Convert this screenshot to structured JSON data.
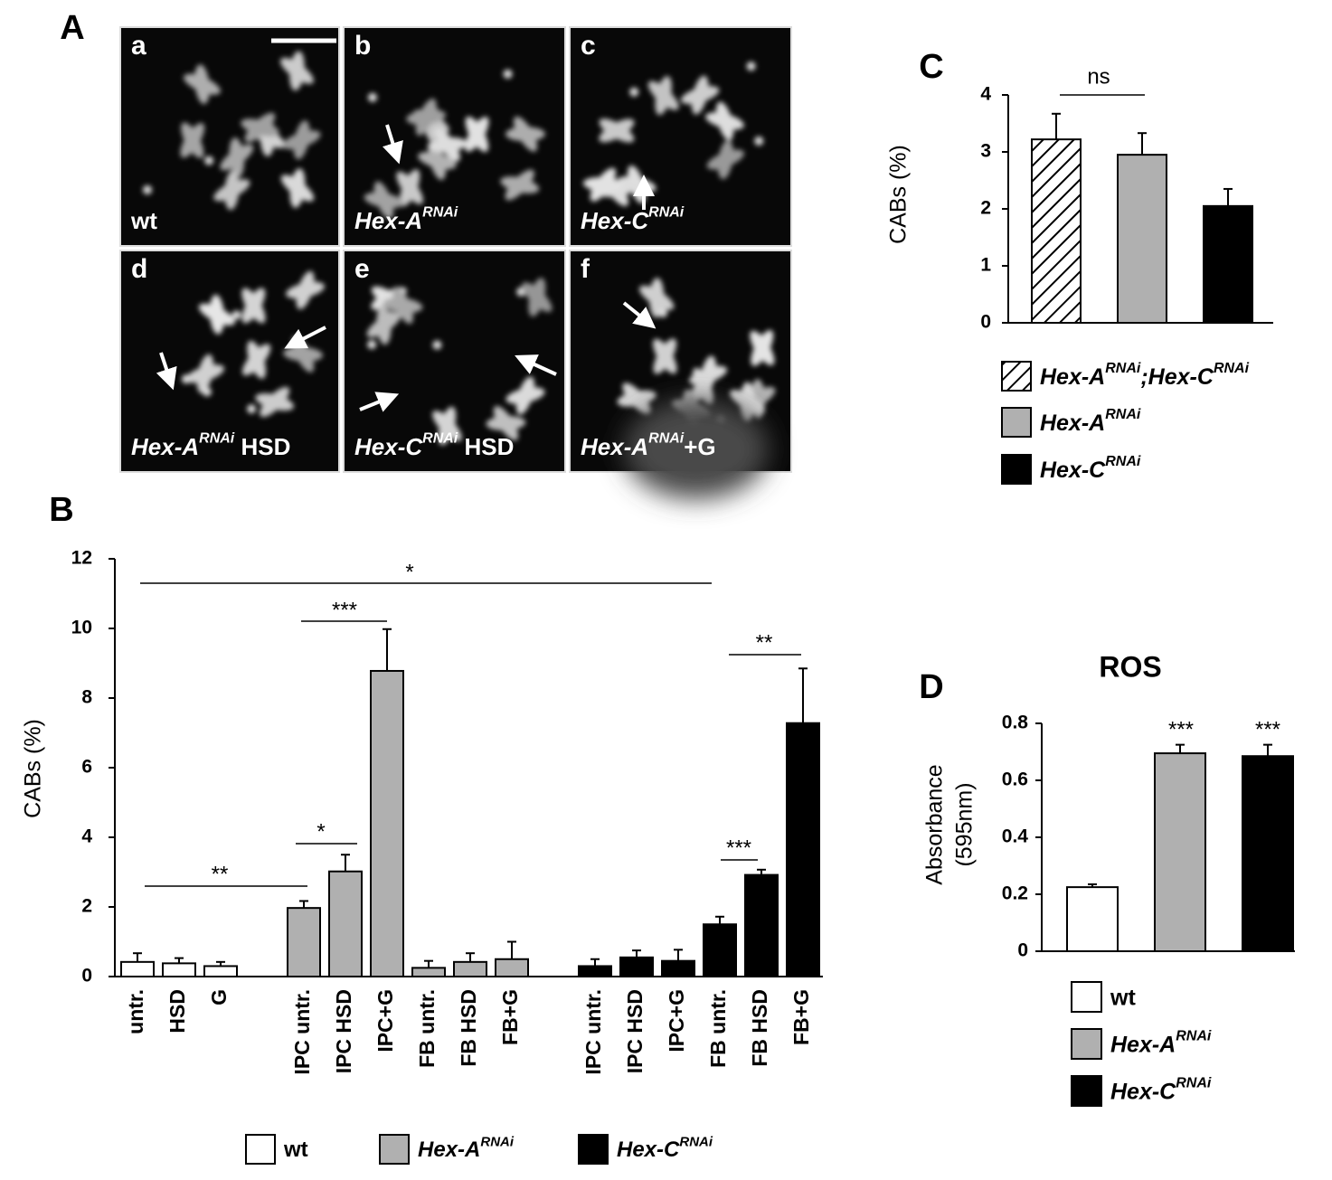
{
  "panel_letters": [
    "A",
    "B",
    "C",
    "D"
  ],
  "micrographs": [
    {
      "letter": "a",
      "label": [
        {
          "text": "wt"
        }
      ]
    },
    {
      "letter": "b",
      "label": [
        {
          "text": "Hex-A",
          "style": "italic"
        },
        {
          "text": "RNAi",
          "style": "sup"
        }
      ]
    },
    {
      "letter": "c",
      "label": [
        {
          "text": "Hex-C",
          "style": "italic"
        },
        {
          "text": "RNAi",
          "style": "sup"
        }
      ]
    },
    {
      "letter": "d",
      "label": [
        {
          "text": "Hex-A",
          "style": "italic"
        },
        {
          "text": "RNAi",
          "style": "sup"
        },
        {
          "text": " HSD"
        }
      ]
    },
    {
      "letter": "e",
      "label": [
        {
          "text": "Hex-C",
          "style": "italic"
        },
        {
          "text": "RNAi",
          "style": "sup"
        },
        {
          "text": " HSD"
        }
      ]
    },
    {
      "letter": "f",
      "label": [
        {
          "text": "Hex-A",
          "style": "italic"
        },
        {
          "text": "RNAi",
          "style": "sup"
        },
        {
          "text": "+G"
        }
      ]
    }
  ],
  "chart_data": [
    {
      "type": "bar",
      "y_label": "CABs (%)",
      "categories": [
        "untr.",
        "HSD",
        "G",
        "IPC untr.",
        "IPC HSD",
        "IPC+G",
        "FB untr.",
        "FB HSD",
        "FB+G",
        "IPC untr.",
        "IPC HSD",
        "IPC+G",
        "FB untr.",
        "FB HSD",
        "FB+G"
      ],
      "series": [
        {
          "name": [
            {
              "text": "wt"
            }
          ],
          "color": "#ffffff",
          "values": [
            0.42,
            0.38,
            0.3,
            null,
            null,
            null,
            null,
            null,
            null,
            null,
            null,
            null,
            null,
            null,
            null
          ],
          "errors": [
            0.25,
            0.15,
            0.12,
            null,
            null,
            null,
            null,
            null,
            null,
            null,
            null,
            null,
            null,
            null,
            null
          ]
        },
        {
          "name": [
            {
              "text": "Hex-A",
              "style": "italic"
            },
            {
              "text": "RNAi",
              "style": "sup"
            }
          ],
          "color": "#b0b0b0",
          "values": [
            null,
            null,
            null,
            1.97,
            3.02,
            8.78,
            0.25,
            0.42,
            0.5,
            null,
            null,
            null,
            null,
            null,
            null
          ],
          "errors": [
            null,
            null,
            null,
            0.2,
            0.48,
            1.2,
            0.2,
            0.25,
            0.5,
            null,
            null,
            null,
            null,
            null,
            null
          ]
        },
        {
          "name": [
            {
              "text": "Hex-C",
              "style": "italic"
            },
            {
              "text": "RNAi",
              "style": "sup"
            }
          ],
          "color": "#000000",
          "values": [
            null,
            null,
            null,
            null,
            null,
            null,
            null,
            null,
            null,
            0.3,
            0.55,
            0.45,
            1.5,
            2.92,
            7.28
          ],
          "errors": [
            null,
            null,
            null,
            null,
            null,
            null,
            null,
            null,
            null,
            0.2,
            0.2,
            0.32,
            0.22,
            0.15,
            1.57
          ]
        }
      ],
      "ylim": [
        0,
        12
      ],
      "yticks": [
        0,
        2,
        4,
        6,
        8,
        10,
        12
      ],
      "annotations": [
        "*",
        "***",
        "*",
        "**",
        "***",
        "**"
      ]
    },
    {
      "type": "bar",
      "y_label": "CABs (%)",
      "series": [
        {
          "name": [
            {
              "text": "Hex-A",
              "style": "italic"
            },
            {
              "text": "RNAi",
              "style": "sup"
            },
            {
              "text": ";Hex-C",
              "style": "italic"
            },
            {
              "text": "RNAi",
              "style": "sup"
            }
          ],
          "color": "#ffffff",
          "pattern": "hatch",
          "values": [
            3.22
          ],
          "errors": [
            0.45
          ]
        },
        {
          "name": [
            {
              "text": "Hex-A",
              "style": "italic"
            },
            {
              "text": "RNAi",
              "style": "sup"
            }
          ],
          "color": "#b0b0b0",
          "values": [
            2.95
          ],
          "errors": [
            0.38
          ]
        },
        {
          "name": [
            {
              "text": "Hex-C",
              "style": "italic"
            },
            {
              "text": "RNAi",
              "style": "sup"
            }
          ],
          "color": "#000000",
          "values": [
            2.05
          ],
          "errors": [
            0.3
          ]
        }
      ],
      "ylim": [
        0,
        4
      ],
      "yticks": [
        0,
        1,
        2,
        3,
        4
      ],
      "annotations": [
        "ns"
      ]
    },
    {
      "type": "bar",
      "title": "ROS",
      "y_label": [
        "Absorbance",
        "(595nm)"
      ],
      "series": [
        {
          "name": [
            {
              "text": "wt"
            }
          ],
          "color": "#ffffff",
          "values": [
            0.225
          ],
          "errors": [
            0.01
          ]
        },
        {
          "name": [
            {
              "text": "Hex-A",
              "style": "italic"
            },
            {
              "text": "RNAi",
              "style": "sup"
            }
          ],
          "color": "#b0b0b0",
          "values": [
            0.695
          ],
          "errors": [
            0.03
          ]
        },
        {
          "name": [
            {
              "text": "Hex-C",
              "style": "italic"
            },
            {
              "text": "RNAi",
              "style": "sup"
            }
          ],
          "color": "#000000",
          "values": [
            0.685
          ],
          "errors": [
            0.04
          ]
        }
      ],
      "ylim": [
        0,
        0.8
      ],
      "yticks": [
        0,
        0.2,
        0.4,
        0.6,
        0.8
      ],
      "annotations": [
        "***",
        "***"
      ]
    }
  ]
}
